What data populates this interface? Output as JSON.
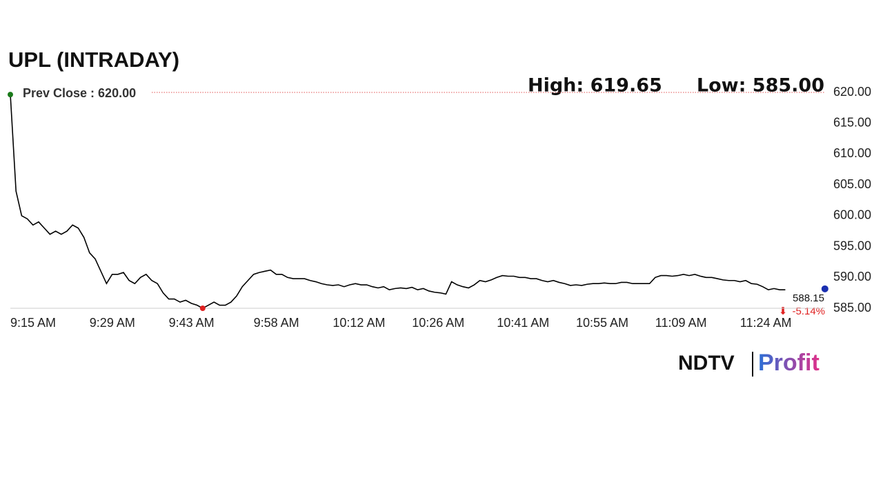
{
  "chart_data": {
    "type": "line",
    "title": "UPL (INTRADAY)",
    "prev_close_label": "Prev Close : 620.00",
    "prev_close": 620,
    "high_label": "High: 619.65",
    "low_label": "Low: 585.00",
    "last_label": "588.15",
    "change_label": "-5.14%",
    "brand": "NDTV",
    "brand_sub": "Profit",
    "categories": [
      "9:15 AM",
      null,
      null,
      null,
      null,
      null,
      null,
      null,
      null,
      null,
      null,
      null,
      null,
      null,
      "9:29 AM",
      null,
      null,
      null,
      null,
      null,
      null,
      null,
      null,
      null,
      null,
      null,
      null,
      null,
      "9:43 AM",
      null,
      null,
      null,
      null,
      null,
      null,
      null,
      null,
      null,
      null,
      null,
      null,
      null,
      null,
      "9:58 AM",
      null,
      null,
      null,
      null,
      null,
      null,
      null,
      null,
      null,
      null,
      null,
      null,
      null,
      "10:12 AM",
      null,
      null,
      null,
      null,
      null,
      null,
      null,
      null,
      null,
      null,
      null,
      null,
      null,
      "10:26 AM",
      null,
      null,
      null,
      null,
      null,
      null,
      null,
      null,
      null,
      null,
      null,
      null,
      null,
      null,
      "10:41 AM",
      null,
      null,
      null,
      null,
      null,
      null,
      null,
      null,
      null,
      null,
      null,
      null,
      null,
      "10:55 AM",
      null,
      null,
      null,
      null,
      null,
      null,
      null,
      null,
      null,
      null,
      null,
      null,
      null,
      "11:09 AM",
      null,
      null,
      null,
      null,
      null,
      null,
      null,
      null,
      null,
      null,
      null,
      null,
      null,
      null,
      "11:24 AM",
      null,
      null,
      null,
      null,
      null,
      null,
      null,
      null,
      null,
      null,
      null,
      null,
      null,
      null,
      null
    ],
    "values": [
      619.65,
      604,
      600,
      599.5,
      598.5,
      599,
      598,
      597,
      597.5,
      597,
      597.5,
      598.5,
      598,
      596.5,
      594,
      593,
      591,
      589,
      590.5,
      590.5,
      590.8,
      589.5,
      589,
      590,
      590.5,
      589.5,
      589,
      587.5,
      586.5,
      586.5,
      586,
      586.3,
      585.8,
      585.5,
      585,
      585.5,
      586,
      585.5,
      585.5,
      586,
      587,
      588.5,
      589.5,
      590.5,
      590.8,
      591,
      591.2,
      590.5,
      590.5,
      590,
      589.8,
      589.8,
      589.8,
      589.5,
      589.3,
      589,
      588.8,
      588.7,
      588.8,
      588.5,
      588.8,
      589,
      588.8,
      588.8,
      588.5,
      588.3,
      588.5,
      588,
      588.2,
      588.3,
      588.2,
      588.4,
      588,
      588.2,
      587.8,
      587.6,
      587.5,
      587.3,
      589.3,
      588.8,
      588.5,
      588.3,
      588.8,
      589.5,
      589.3,
      589.6,
      590,
      590.3,
      590.2,
      590.2,
      590,
      590,
      589.8,
      589.8,
      589.5,
      589.3,
      589.5,
      589.2,
      589,
      588.7,
      588.8,
      588.7,
      588.9,
      589,
      589,
      589.1,
      589,
      589,
      589.2,
      589.2,
      589,
      589,
      589,
      589,
      590,
      590.3,
      590.3,
      590.2,
      590.3,
      590.5,
      590.3,
      590.5,
      590.2,
      590,
      590,
      589.8,
      589.6,
      589.5,
      589.5,
      589.3,
      589.5,
      589,
      588.9,
      588.5,
      588,
      588.2,
      588,
      588,
      null,
      null,
      null,
      null,
      null,
      null,
      588.15
    ],
    "color": "#000000",
    "start_color": "#1a7a1a",
    "low_color": "#e02020",
    "end_color": "#1a2fb0",
    "ylim": [
      585,
      620
    ],
    "yticks": [
      {
        "value": 620,
        "label": "620.00"
      },
      {
        "value": 615,
        "label": "615.00"
      },
      {
        "value": 610,
        "label": "610.00"
      },
      {
        "value": 605,
        "label": "605.00"
      },
      {
        "value": 600,
        "label": "600.00"
      },
      {
        "value": 595,
        "label": "595.00"
      },
      {
        "value": 590,
        "label": "590.00"
      },
      {
        "value": 585,
        "label": "585.00"
      }
    ]
  }
}
